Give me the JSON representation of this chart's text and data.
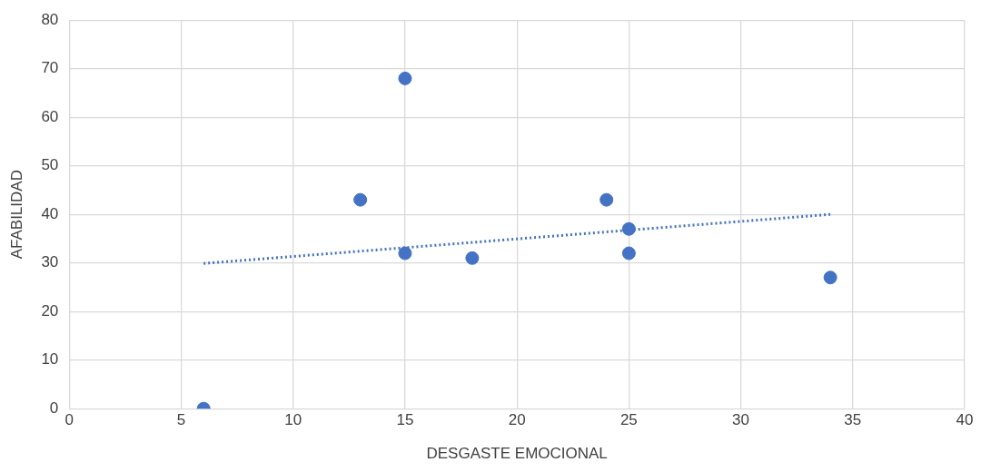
{
  "chart_data": {
    "type": "scatter",
    "xlabel": "DESGASTE EMOCIONAL",
    "ylabel": "AFABILIDAD",
    "xlim": [
      0,
      40
    ],
    "ylim": [
      0,
      80
    ],
    "xticks": [
      0,
      5,
      10,
      15,
      20,
      25,
      30,
      35,
      40
    ],
    "yticks": [
      0,
      10,
      20,
      30,
      40,
      50,
      60,
      70,
      80
    ],
    "grid": true,
    "marker": "circle",
    "series": [
      {
        "color": "#4472c4",
        "x": [
          6,
          13,
          15,
          15,
          18,
          24,
          25,
          25,
          34
        ],
        "values": [
          0,
          43,
          68,
          32,
          31,
          43,
          37,
          32,
          27
        ]
      },
      {
        "type": "line",
        "color": "#4472c4",
        "x": [
          6,
          34
        ],
        "values": [
          29.9,
          40.0
        ],
        "line_style": "dotted",
        "marker": "none"
      }
    ]
  }
}
